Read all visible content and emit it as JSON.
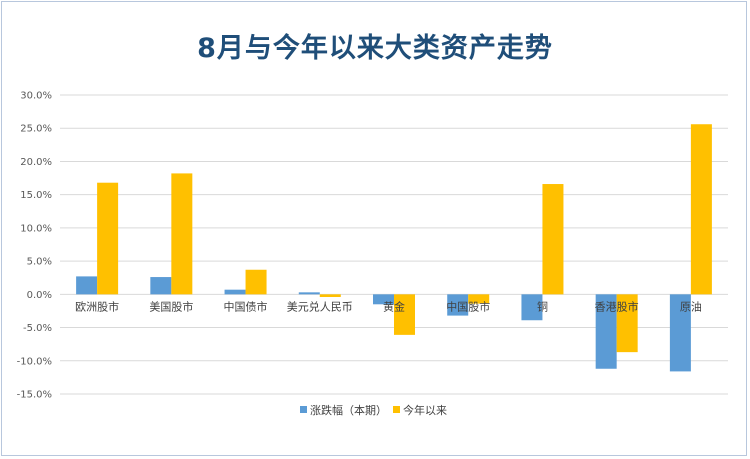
{
  "chart_data": {
    "type": "bar",
    "title": "8月与今年以来大类资产走势",
    "categories": [
      "欧洲股市",
      "美国股市",
      "中国债市",
      "美元兑人民币",
      "黄金",
      "中国股市",
      "铜",
      "香港股市",
      "原油"
    ],
    "series": [
      {
        "name": "涨跌幅（本期）",
        "color": "#5b9bd5",
        "values": [
          2.7,
          2.6,
          0.7,
          0.3,
          -1.5,
          -3.2,
          -3.9,
          -11.2,
          -11.6
        ]
      },
      {
        "name": "今年以来",
        "color": "#ffc000",
        "values": [
          16.8,
          18.2,
          3.7,
          -0.4,
          -6.1,
          -1.4,
          16.6,
          -8.7,
          25.6
        ]
      }
    ],
    "ylim": [
      -15,
      30
    ],
    "yticks": [
      30,
      25,
      20,
      15,
      10,
      5,
      0,
      -5,
      -10,
      -15
    ],
    "ytick_labels": [
      "30.0%",
      "25.0%",
      "20.0%",
      "15.0%",
      "10.0%",
      "5.0%",
      "0.0%",
      "-5.0%",
      "-10.0%",
      "-15.0%"
    ],
    "grid": true,
    "legend_position": "bottom"
  }
}
